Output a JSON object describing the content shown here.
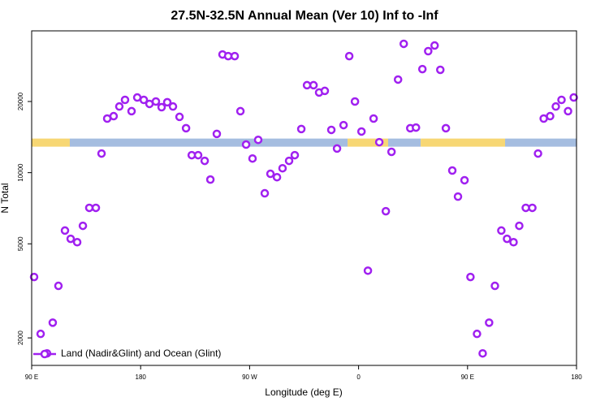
{
  "chart_data": {
    "type": "scatter",
    "title": "27.5N-32.5N Annual Mean (Ver 10)   Inf to -Inf",
    "x_label": "Longitude (deg E)",
    "y_label": "N Total",
    "log_y": true,
    "xlim": [
      90,
      540
    ],
    "xticks": [
      {
        "value": 90,
        "label": "90 E"
      },
      180,
      {
        "value": 270,
        "label": "90 W"
      },
      {
        "value": 360,
        "label": "0"
      },
      {
        "value": 450,
        "label": "90 E"
      },
      {
        "value": 540,
        "label": "180"
      }
    ],
    "ylim": [
      1530,
      39800
    ],
    "yticks": [
      2000,
      5000,
      10000,
      20000
    ],
    "legend": "bottom-left",
    "land_ocean_band": {
      "y": 13400,
      "segments": [
        {
          "x": [
            90,
            121.5
          ],
          "color": "#f7d774"
        },
        {
          "x": [
            121.5,
            350.9
          ],
          "color": "#a5bde0"
        },
        {
          "x": [
            350.9,
            384.4
          ],
          "color": "#f7d774"
        },
        {
          "x": [
            384.4,
            411.3
          ],
          "color": "#a5bde0"
        },
        {
          "x": [
            411.3,
            481.0
          ],
          "color": "#f7d774"
        },
        {
          "x": [
            481.0,
            540
          ],
          "color": "#a5bde0"
        }
      ]
    },
    "series": [
      {
        "name": "Land (Nadir&Glint) and Ocean (Glint)",
        "color": "#a020f0",
        "x": [
          92.0,
          97.4,
          102.7,
          107.4,
          112.1,
          117.5,
          122.2,
          127.6,
          132.3,
          137.6,
          143.0,
          147.7,
          152.4,
          157.7,
          162.4,
          167.1,
          172.5,
          177.2,
          182.6,
          187.3,
          192.6,
          197.3,
          202.0,
          206.7,
          212.1,
          217.5,
          222.2,
          227.5,
          232.9,
          237.6,
          242.9,
          247.6,
          252.3,
          257.7,
          262.4,
          267.1,
          272.4,
          277.1,
          282.5,
          287.2,
          292.6,
          297.2,
          302.6,
          307.3,
          312.7,
          317.4,
          322.8,
          327.4,
          332.1,
          337.5,
          342.2,
          347.6,
          352.3,
          357.0,
          362.4,
          367.7,
          372.4,
          377.1,
          382.5,
          387.2,
          392.6,
          397.3,
          402.7,
          407.4,
          412.7,
          417.5,
          422.8,
          427.5,
          432.1,
          437.4,
          442.1,
          447.5,
          452.4,
          457.8,
          462.5,
          467.8,
          472.6,
          477.9,
          482.6,
          488.0,
          492.7,
          498.1,
          503.5,
          508.2,
          512.9,
          518.2,
          522.9,
          527.6,
          533.0,
          537.7
        ],
        "values": [
          3620,
          2080,
          1720,
          2320,
          3320,
          5690,
          5250,
          5080,
          5960,
          7100,
          7100,
          12050,
          16940,
          17340,
          19050,
          20320,
          18200,
          20800,
          20320,
          19540,
          20000,
          18920,
          19860,
          19050,
          17220,
          15420,
          11860,
          11860,
          11220,
          9350,
          14590,
          31620,
          31120,
          31120,
          18200,
          13150,
          11480,
          13770,
          8180,
          9890,
          9570,
          10440,
          11220,
          11860,
          15300,
          23440,
          23440,
          21830,
          22180,
          15170,
          12650,
          15890,
          31120,
          20000,
          14930,
          3850,
          16940,
          13460,
          6870,
          12250,
          24770,
          35080,
          15420,
          15520,
          27420,
          32660,
          34510,
          27230,
          15420,
          10210,
          7920,
          9290,
          3620,
          2080,
          1720,
          2320,
          3320,
          5690,
          5250,
          5080,
          5960,
          7100,
          7100,
          12050,
          16940,
          17340,
          19050,
          20320,
          18200,
          20800
        ]
      }
    ]
  }
}
